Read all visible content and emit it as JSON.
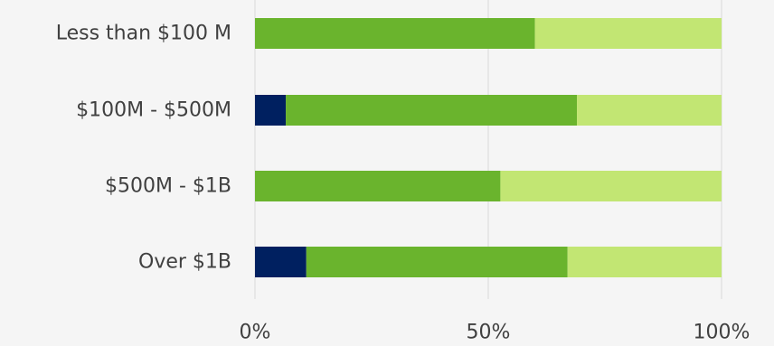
{
  "chart_data": {
    "type": "bar",
    "orientation": "horizontal",
    "stacked": "percent",
    "categories": [
      "Less than $100 M",
      "$100M - $500M",
      "$500M - $1B",
      "Over $1B"
    ],
    "series": [
      {
        "color": "#002060",
        "values": [
          0,
          6.6,
          0,
          11
        ]
      },
      {
        "color": "#6ab42d",
        "values": [
          60,
          62.4,
          52.6,
          56
        ]
      },
      {
        "color": "#c2e673",
        "values": [
          40,
          31,
          47.4,
          33
        ]
      }
    ],
    "xlim": [
      0,
      100
    ],
    "xticks": [
      0,
      50,
      100
    ],
    "xtick_labels": [
      "0%",
      "50%",
      "100%"
    ],
    "grid": true,
    "legend": "none"
  }
}
